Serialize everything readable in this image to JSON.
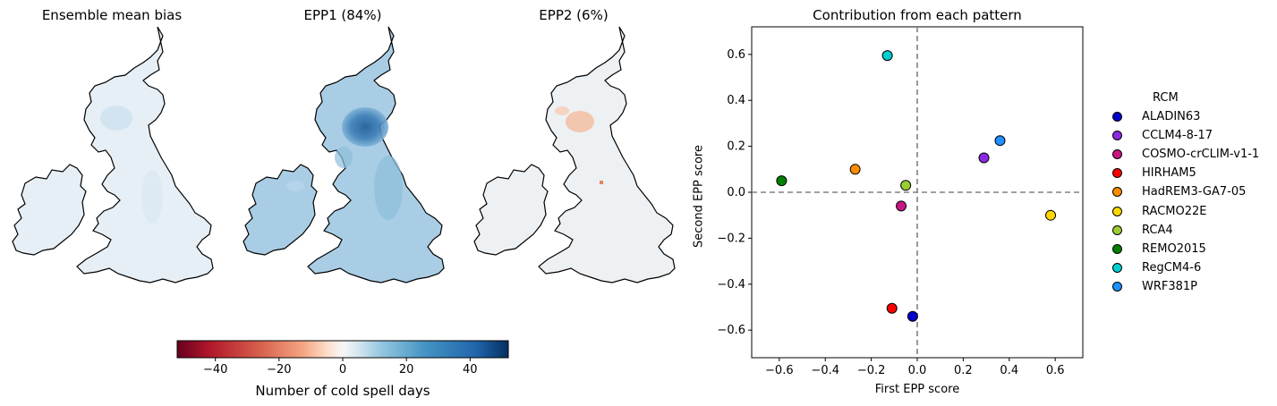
{
  "maps": {
    "panels": [
      {
        "title": "Ensemble mean bias",
        "intensity": "weak"
      },
      {
        "title": "EPP1 (84%)",
        "intensity": "strong"
      },
      {
        "title": "EPP2 (6%)",
        "intensity": "mixed"
      }
    ]
  },
  "colorbar": {
    "label": "Number of cold spell days",
    "ticks": [
      "−40",
      "−20",
      "0",
      "20",
      "40"
    ],
    "tick_values": [
      -40,
      -20,
      0,
      20,
      40
    ],
    "range": [
      -52,
      52
    ],
    "colormap": "RdBu",
    "low_color": "#67001f",
    "high_color": "#053061"
  },
  "chart_data": {
    "type": "scatter",
    "title": "Contribution from each pattern",
    "xlabel": "First EPP score",
    "ylabel": "Second EPP score",
    "xlim": [
      -0.72,
      0.72
    ],
    "ylim": [
      -0.72,
      0.72
    ],
    "xticks": [
      "−0.6",
      "−0.4",
      "−0.2",
      "0.0",
      "0.2",
      "0.4",
      "0.6"
    ],
    "xtick_values": [
      -0.6,
      -0.4,
      -0.2,
      0.0,
      0.2,
      0.4,
      0.6
    ],
    "yticks": [
      "0.6",
      "0.4",
      "0.2",
      "0.0",
      "−0.2",
      "−0.4",
      "−0.6"
    ],
    "ytick_values": [
      0.6,
      0.4,
      0.2,
      0.0,
      -0.2,
      -0.4,
      -0.6
    ],
    "grid": false,
    "reference_lines": "dashed at x=0 and y=0",
    "legend_title": "RCM",
    "legend_position": "right, outside",
    "points": [
      {
        "label": "ALADIN63",
        "x": -0.02,
        "y": -0.54,
        "color": "#0000cd"
      },
      {
        "label": "CCLM4-8-17",
        "x": 0.29,
        "y": 0.15,
        "color": "#8a2be2"
      },
      {
        "label": "COSMO-crCLIM-v1-1",
        "x": -0.07,
        "y": -0.06,
        "color": "#c71585"
      },
      {
        "label": "HIRHAM5",
        "x": -0.11,
        "y": -0.505,
        "color": "#ff0000"
      },
      {
        "label": "HadREM3-GA7-05",
        "x": -0.27,
        "y": 0.1,
        "color": "#ff8c00"
      },
      {
        "label": "RACMO22E",
        "x": 0.58,
        "y": -0.1,
        "color": "#ffd700"
      },
      {
        "label": "RCA4",
        "x": -0.05,
        "y": 0.03,
        "color": "#9acd32"
      },
      {
        "label": "REMO2015",
        "x": -0.59,
        "y": 0.05,
        "color": "#008000"
      },
      {
        "label": "RegCM4-6",
        "x": -0.13,
        "y": 0.595,
        "color": "#00ced1"
      },
      {
        "label": "WRF381P",
        "x": 0.36,
        "y": 0.225,
        "color": "#1e90ff"
      }
    ]
  }
}
